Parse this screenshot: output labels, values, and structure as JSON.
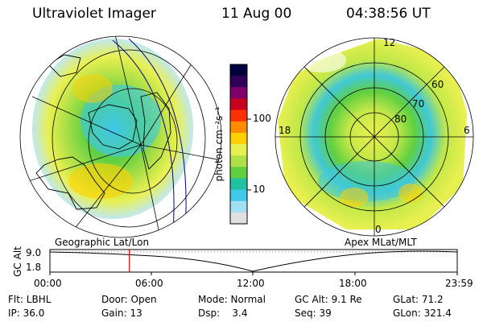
{
  "header": {
    "instrument": "Ultraviolet Imager",
    "date": "11 Aug 00",
    "time": "04:38:56 UT"
  },
  "geo_panel": {
    "label": "Geographic Lat/Lon"
  },
  "mag_panel": {
    "label": "Apex MLat/MLT",
    "mlt_labels": [
      "12",
      "18",
      "6",
      "0"
    ],
    "mlat_labels": [
      "60",
      "70",
      "80"
    ]
  },
  "colorbar": {
    "unit": "photon cm⁻²s⁻¹",
    "ticks": [
      "100",
      "10"
    ],
    "colors": [
      "#000040",
      "#30005a",
      "#80006a",
      "#c80020",
      "#ff3000",
      "#ff8c00",
      "#ffd000",
      "#e8f050",
      "#b0e048",
      "#60d040",
      "#20c0a0",
      "#40c8e8",
      "#a0e0f0",
      "#e0e0e0"
    ]
  },
  "altitude_plot": {
    "axis_label": "GC Alt",
    "y_ticks": [
      "9.0",
      "1.8"
    ],
    "x_ticks": [
      "00:00",
      "06:00",
      "12:00",
      "18:00",
      "23:59"
    ],
    "current_time_fraction": 0.195
  },
  "info": {
    "flt": "Flt: LBHL",
    "ip": "IP: 36.0",
    "door": "Door: Open",
    "gain": "Gain: 13",
    "mode": "Mode: Normal",
    "dsp": "Dsp:    3.4",
    "gc_alt": "GC Alt: 9.1 Re",
    "seq": "Seq: 39",
    "glat": "GLat: 71.2",
    "glon": "GLon: 321.4"
  }
}
